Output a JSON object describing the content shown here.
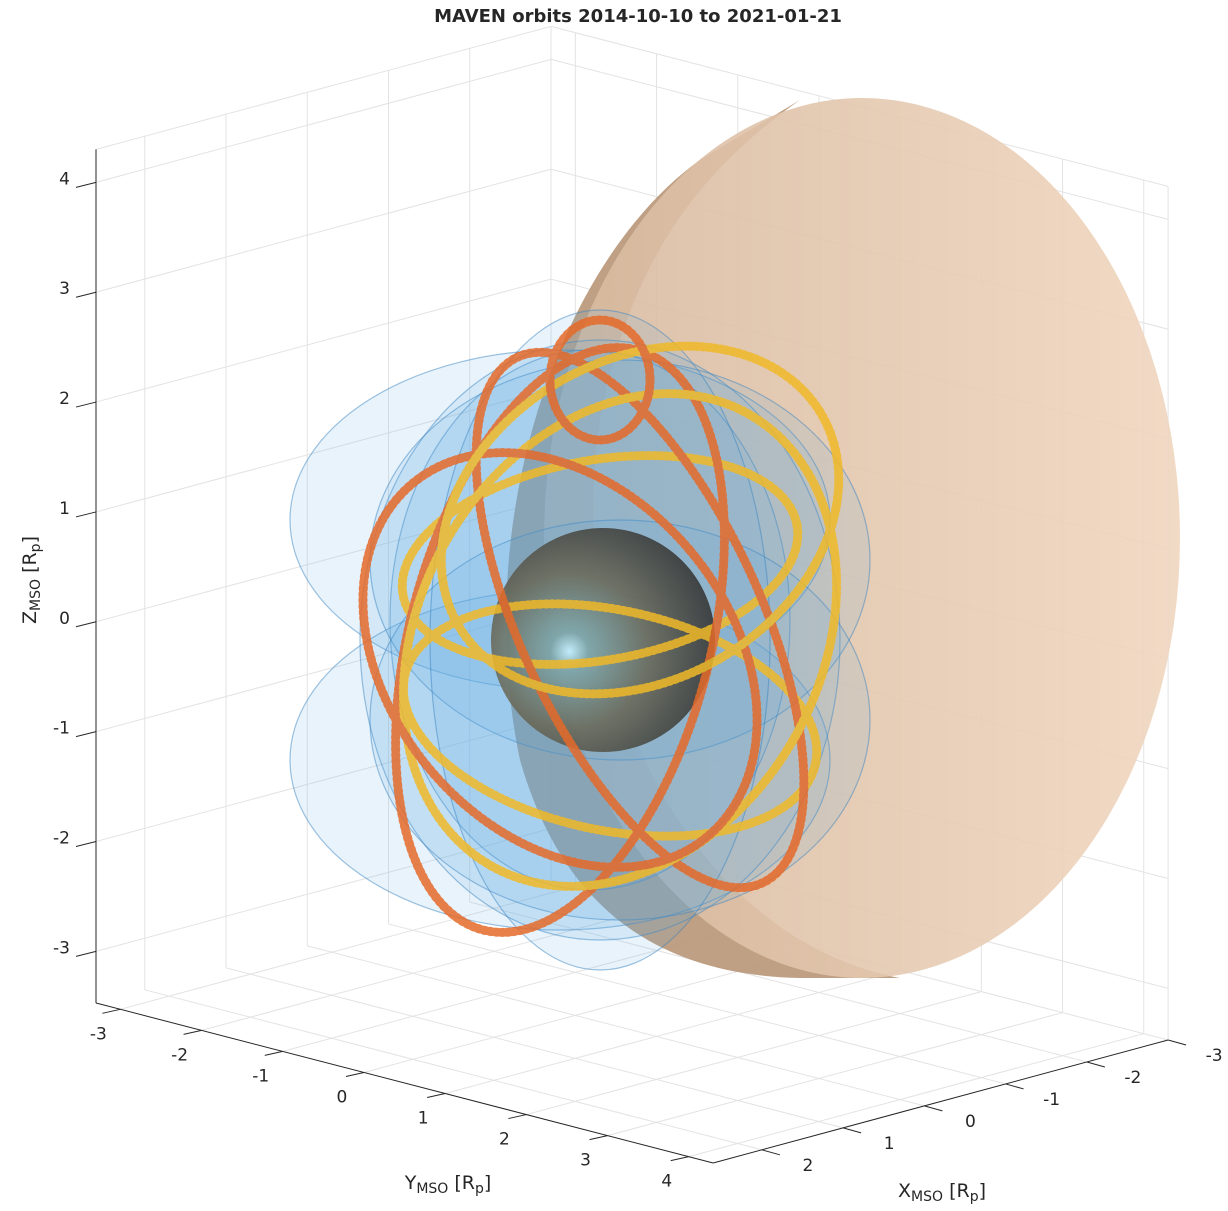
{
  "chart_data": {
    "type": "scatter3d",
    "title": "MAVEN orbits 2014-10-10 to 2021-01-21",
    "xlabel": [
      "X",
      "MSO",
      " [R",
      "p",
      "]"
    ],
    "ylabel": [
      "Y",
      "MSO",
      " [R",
      "p",
      "]"
    ],
    "zlabel": [
      "Z",
      "MSO",
      " [R",
      "p",
      "]"
    ],
    "xlim": [
      -3,
      2.6
    ],
    "ylim": [
      -3.3,
      4.3
    ],
    "zlim": [
      -3.47,
      4.3
    ],
    "xticks": [
      -3,
      -2,
      -1,
      0,
      1,
      2
    ],
    "yticks": [
      -3,
      -2,
      -1,
      0,
      1,
      2,
      3,
      4
    ],
    "zticks": [
      -3,
      -2,
      -1,
      0,
      1,
      2,
      3,
      4
    ],
    "grid": true
  }
}
